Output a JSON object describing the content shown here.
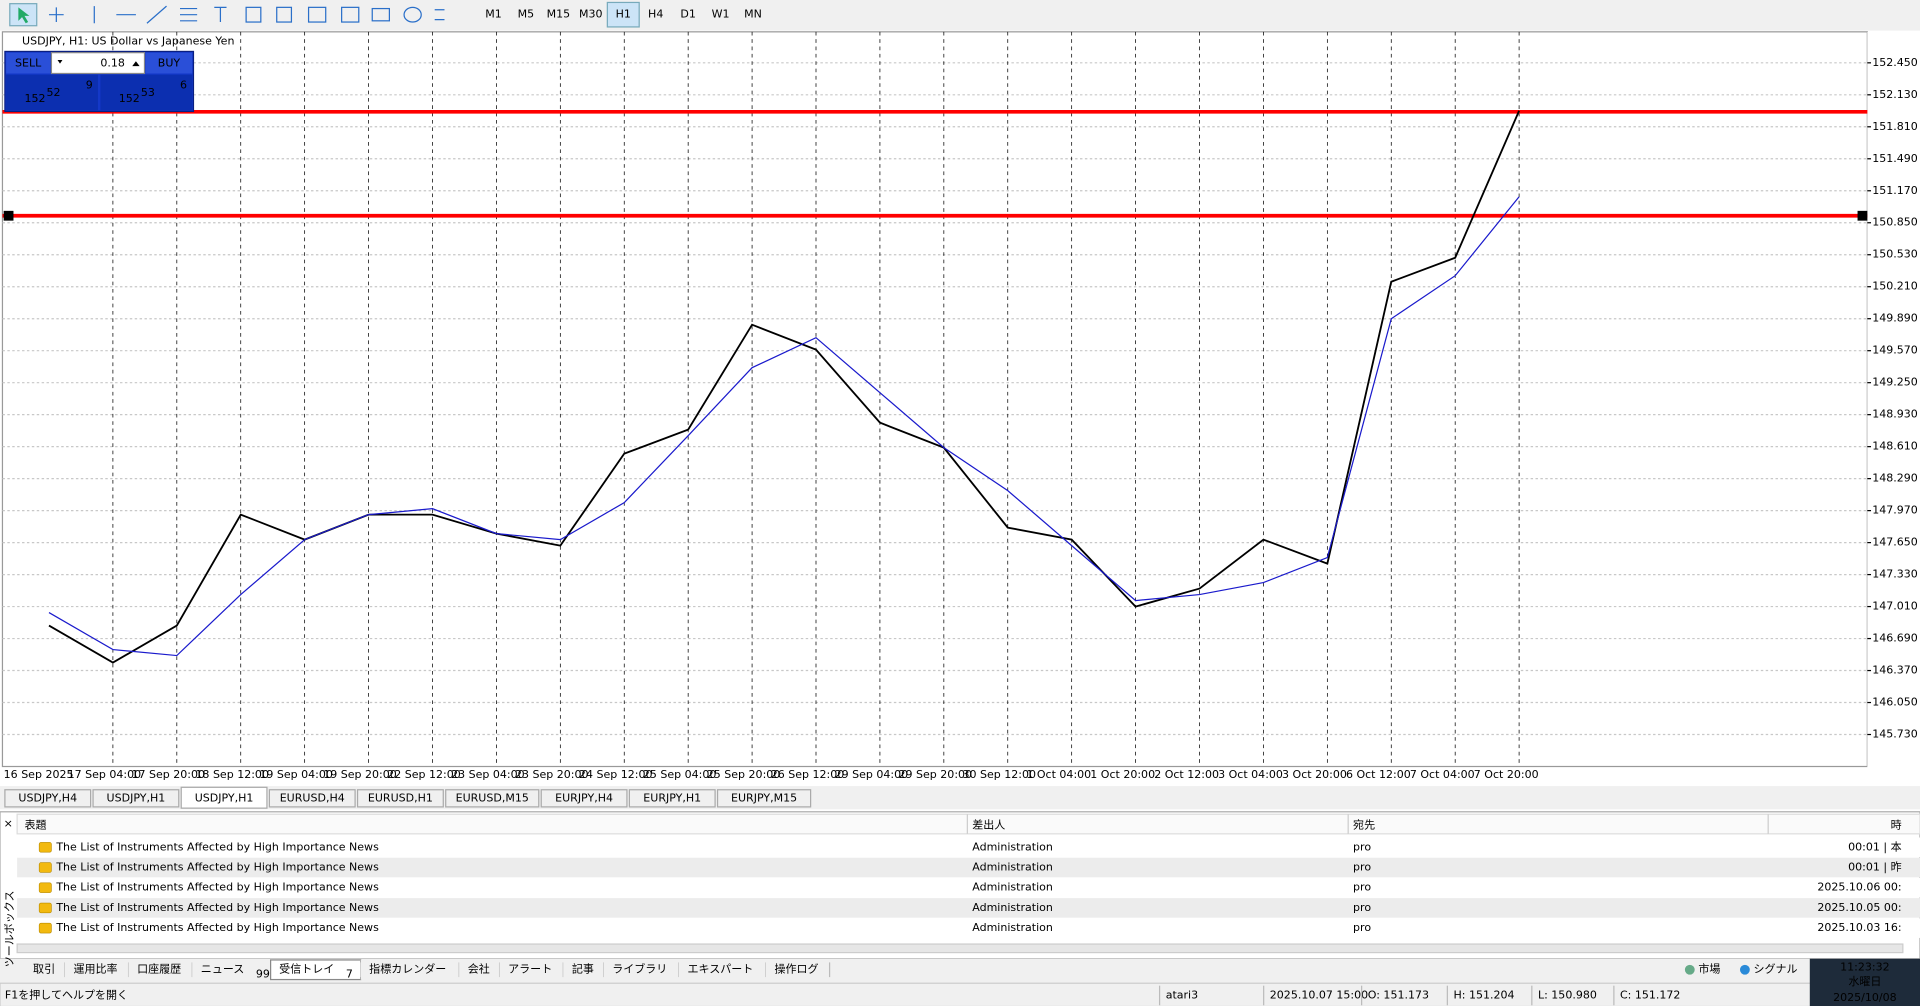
{
  "toolbar": {
    "timeframes": [
      "M1",
      "M5",
      "M15",
      "M30",
      "H1",
      "H4",
      "D1",
      "W1",
      "MN"
    ],
    "active": "H1"
  },
  "chart_window": {
    "title": "USDJPY, H1:  US Dollar vs Japanese Yen",
    "trade_panel": {
      "sell": "SELL",
      "buy": "BUY",
      "volume": "0.18",
      "bid": {
        "big": "152",
        "mid": "52",
        "small": "9"
      },
      "ask": {
        "big": "152",
        "mid": "53",
        "small": "6"
      }
    }
  },
  "chart_data": {
    "type": "line",
    "categories": [
      "16 Sep 2025",
      "17 Sep 04:00",
      "17 Sep 20:00",
      "18 Sep 12:00",
      "19 Sep 04:00",
      "19 Sep 20:00",
      "22 Sep 12:00",
      "23 Sep 04:00",
      "23 Sep 20:00",
      "24 Sep 12:00",
      "25 Sep 04:00",
      "25 Sep 20:00",
      "26 Sep 12:00",
      "29 Sep 04:00",
      "29 Sep 20:00",
      "30 Sep 12:00",
      "1 Oct 04:00",
      "1 Oct 20:00",
      "2 Oct 12:00",
      "3 Oct 04:00",
      "3 Oct 20:00",
      "6 Oct 12:00",
      "7 Oct 04:00",
      "7 Oct 20:00"
    ],
    "series": [
      {
        "color": "#000000",
        "values": [
          146.82,
          146.45,
          146.82,
          147.93,
          147.68,
          147.93,
          147.93,
          147.74,
          147.62,
          148.54,
          148.78,
          149.83,
          149.58,
          148.85,
          148.6,
          147.8,
          147.68,
          147.01,
          147.19,
          147.68,
          147.44,
          150.26,
          150.5,
          151.97
        ]
      },
      {
        "color": "#1a1acc",
        "values": [
          146.95,
          146.58,
          146.52,
          147.13,
          147.68,
          147.93,
          147.99,
          147.74,
          147.68,
          148.05,
          148.72,
          149.4,
          149.7,
          149.15,
          148.6,
          148.17,
          147.62,
          147.07,
          147.13,
          147.25,
          147.5,
          149.89,
          150.32,
          151.11
        ]
      }
    ],
    "hlines": {
      "values": [
        151.96,
        150.92
      ],
      "color": "#ff0000"
    },
    "ylim": [
      145.41,
      152.76
    ],
    "yticks": [
      {
        "value": 145.73,
        "label": "145.730"
      },
      {
        "value": 146.05,
        "label": "146.050"
      },
      {
        "value": 146.37,
        "label": "146.370"
      },
      {
        "value": 146.69,
        "label": "146.690"
      },
      {
        "value": 147.01,
        "label": "147.010"
      },
      {
        "value": 147.33,
        "label": "147.330"
      },
      {
        "value": 147.65,
        "label": "147.650"
      },
      {
        "value": 147.97,
        "label": "147.970"
      },
      {
        "value": 148.29,
        "label": "148.290"
      },
      {
        "value": 148.61,
        "label": "148.610"
      },
      {
        "value": 148.93,
        "label": "148.930"
      },
      {
        "value": 149.25,
        "label": "149.250"
      },
      {
        "value": 149.57,
        "label": "149.570"
      },
      {
        "value": 149.89,
        "label": "149.890"
      },
      {
        "value": 150.21,
        "label": "150.210"
      },
      {
        "value": 150.53,
        "label": "150.530"
      },
      {
        "value": 150.85,
        "label": "150.850"
      },
      {
        "value": 151.17,
        "label": "151.170"
      },
      {
        "value": 151.49,
        "label": "151.490"
      },
      {
        "value": 151.81,
        "label": "151.810"
      },
      {
        "value": 152.13,
        "label": "152.130"
      },
      {
        "value": 152.45,
        "label": "152.450"
      }
    ],
    "grid": true
  },
  "chart_tabs": {
    "items": [
      "USDJPY,H4",
      "USDJPY,H1",
      "USDJPY,H1",
      "EURUSD,H4",
      "EURUSD,H1",
      "EURUSD,M15",
      "EURJPY,H4",
      "EURJPY,H1",
      "EURJPY,M15"
    ],
    "active": 2
  },
  "toolbox": {
    "side_label": "ツールボックス",
    "columns": [
      "表題",
      "差出人",
      "宛先",
      "時"
    ],
    "rows": [
      [
        "The List of Instruments Affected by High Importance News",
        "Administration",
        "pro",
        "00:01 | 本"
      ],
      [
        "The List of Instruments Affected by High Importance News",
        "Administration",
        "pro",
        "00:01 | 昨"
      ],
      [
        "The List of Instruments Affected by High Importance News",
        "Administration",
        "pro",
        "2025.10.06 00:"
      ],
      [
        "The List of Instruments Affected by High Importance News",
        "Administration",
        "pro",
        "2025.10.05 00:"
      ],
      [
        "The List of Instruments Affected by High Importance News",
        "Administration",
        "pro",
        "2025.10.03 16:"
      ]
    ],
    "tabs": [
      {
        "label": "取引"
      },
      {
        "label": "運用比率"
      },
      {
        "label": "口座履歴"
      },
      {
        "label": "ニュース",
        "badge": "99"
      },
      {
        "label": "受信トレイ",
        "badge": "7"
      },
      {
        "label": "指標カレンダー"
      },
      {
        "label": "会社"
      },
      {
        "label": "アラート"
      },
      {
        "label": "記事"
      },
      {
        "label": "ライブラリ"
      },
      {
        "label": "エキスパート"
      },
      {
        "label": "操作ログ"
      }
    ],
    "active_tab": 4,
    "right": [
      "市場",
      "シグナル"
    ]
  },
  "status_bar": {
    "help": "F1を押してヘルプを開く",
    "profile": "atari3",
    "time": "2025.10.07 15:00",
    "open": "O: 151.173",
    "high": "H: 151.204",
    "low": "L: 150.980",
    "close": "C: 151.172"
  },
  "clock": {
    "time": "11:23:32",
    "weekday": "水曜日",
    "date": "2025/10/08"
  }
}
